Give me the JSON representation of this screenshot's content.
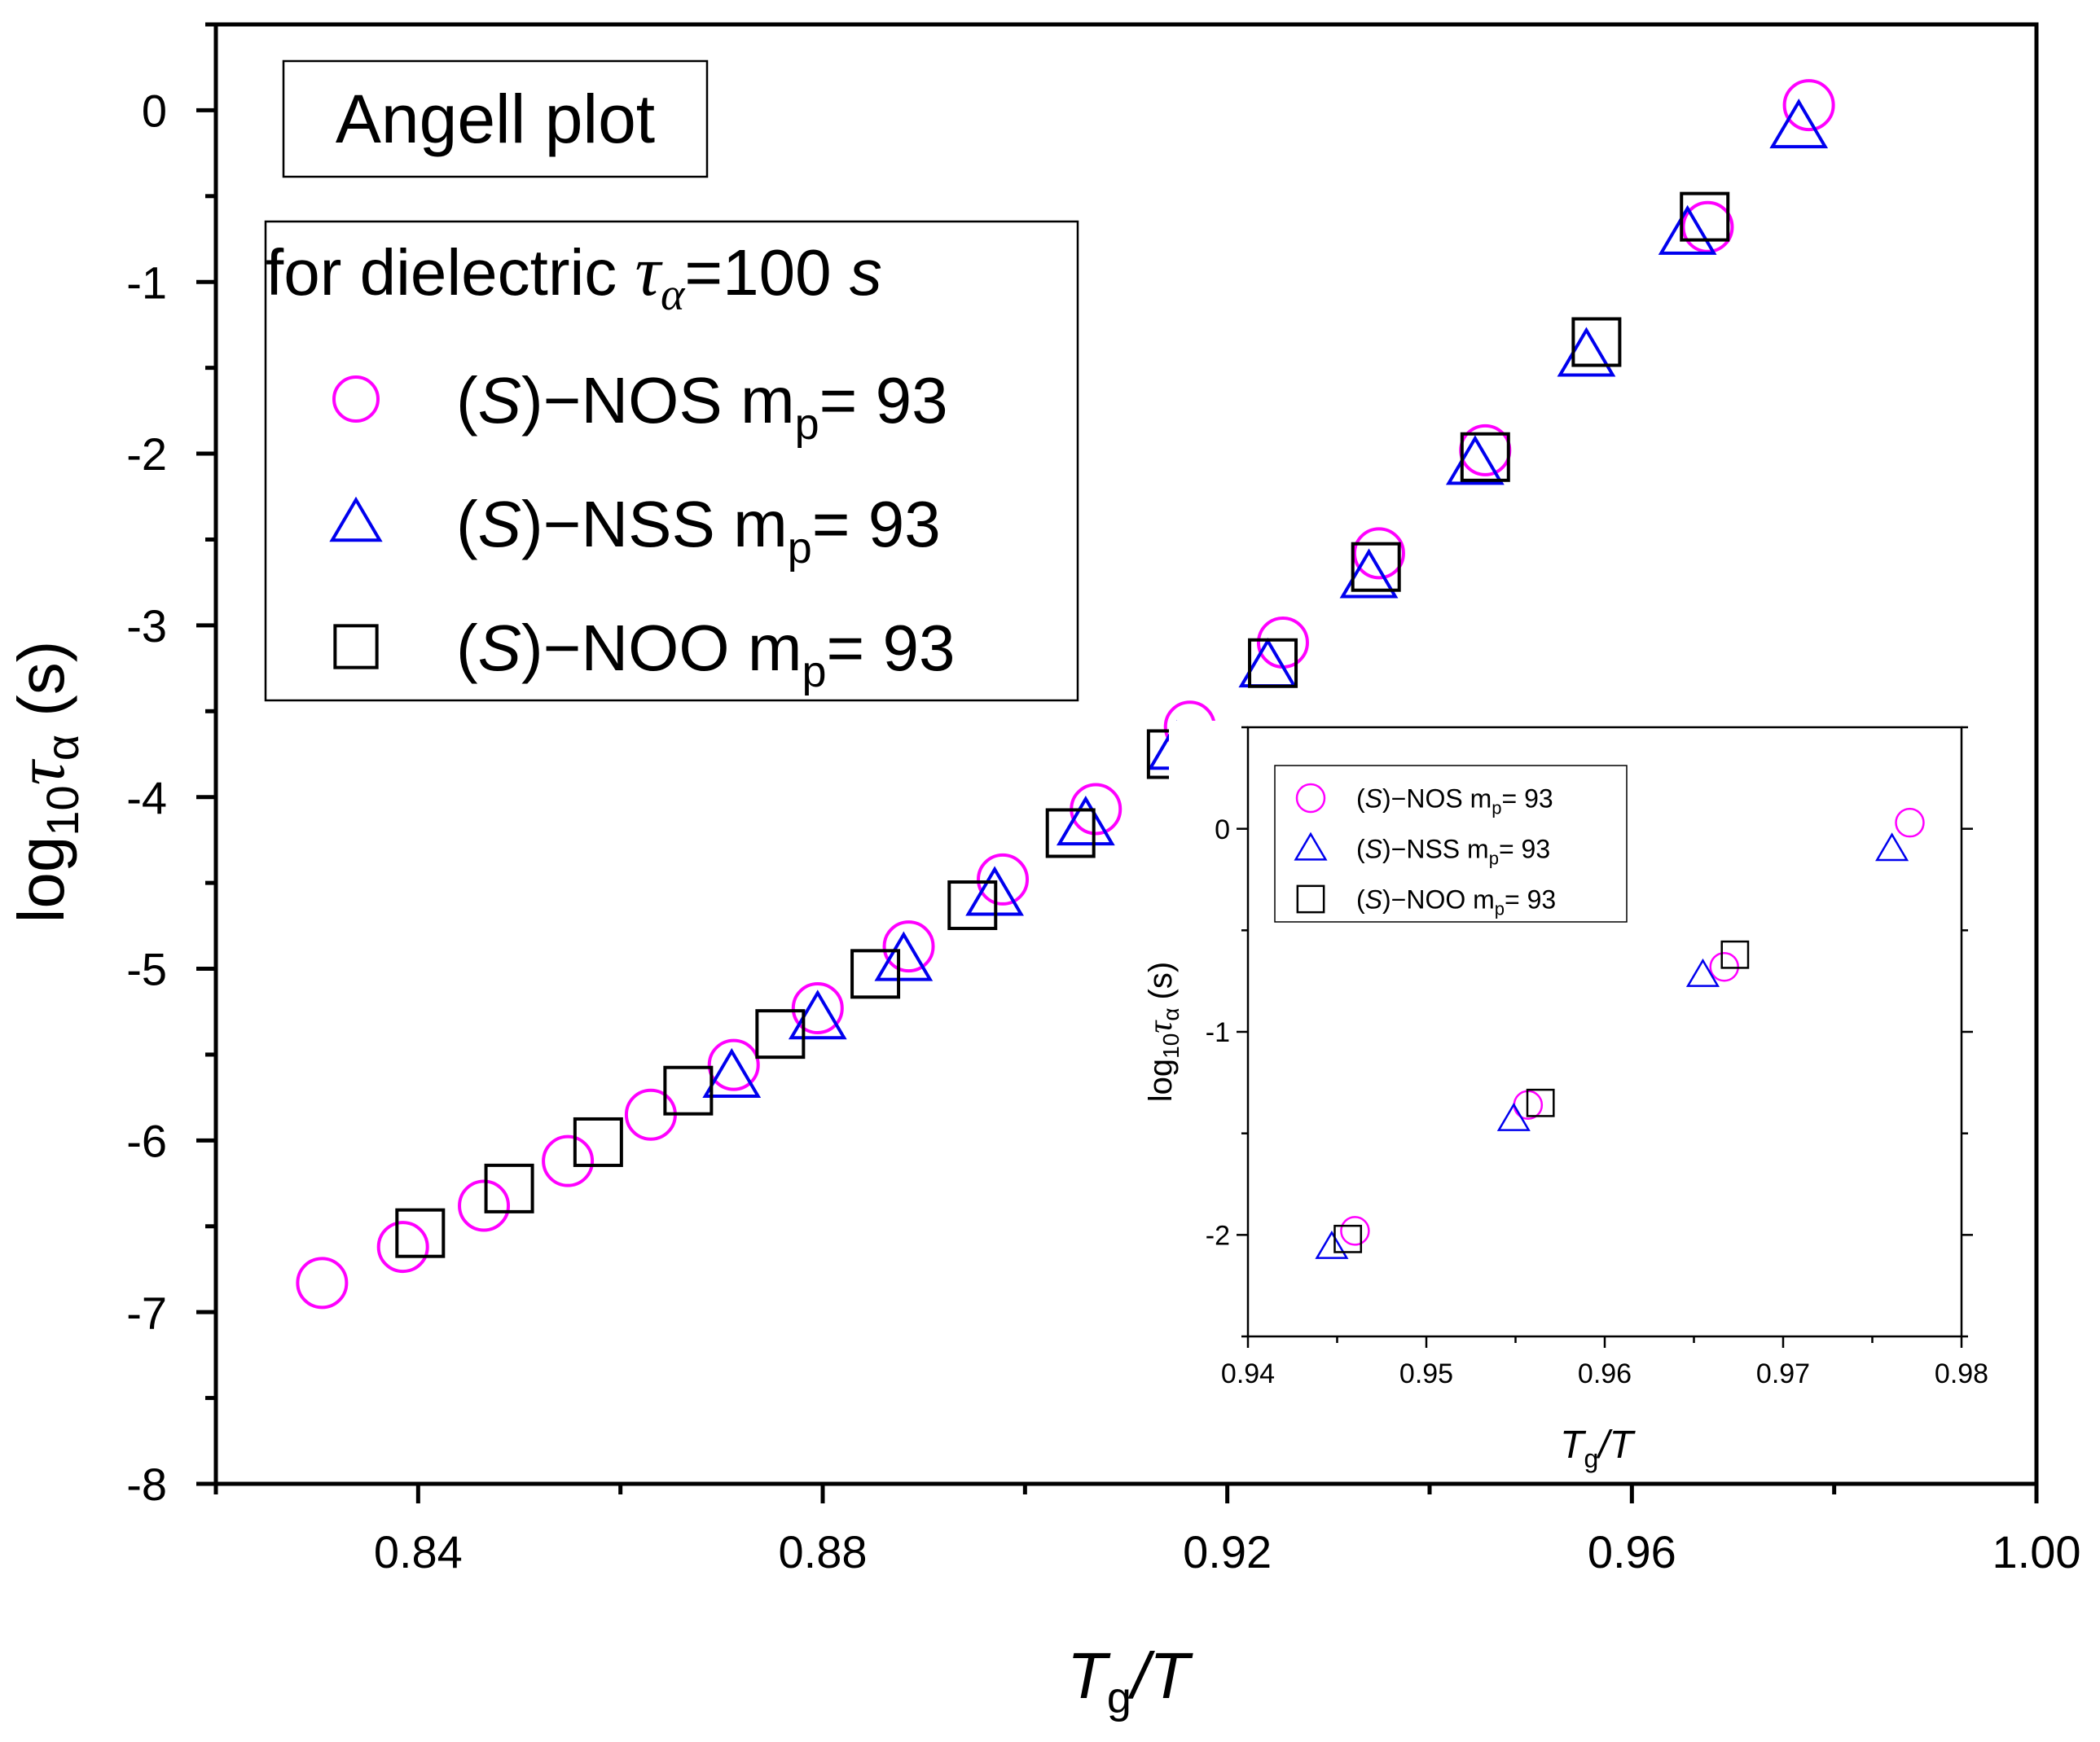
{
  "chart_data": [
    {
      "id": "main",
      "type": "scatter",
      "xlim": [
        0.82,
        1.0
      ],
      "ylim": [
        -8,
        0.5
      ],
      "x_ticks": [
        0.84,
        0.88,
        0.92,
        0.96,
        1.0
      ],
      "x_tick_labels": [
        "0.84",
        "0.88",
        "0.92",
        "0.96",
        "1.00"
      ],
      "y_ticks": [
        0,
        -1,
        -2,
        -3,
        -4,
        -5,
        -6,
        -7,
        -8
      ],
      "y_tick_labels": [
        "0",
        "-1",
        "-2",
        "-3",
        "-4",
        "-5",
        "-6",
        "-7",
        "-8"
      ],
      "xlabel": {
        "main": "T",
        "sub": "g",
        "rest": "/T"
      },
      "ylabel": {
        "prefix": "log",
        "sub": "10",
        "var": "τ",
        "varsub": "α",
        "suffix": "(s)"
      },
      "title_box": "Angell plot",
      "legend_header": {
        "text": "for dielectric ",
        "tau": "τ",
        "tausub": "α",
        "eq": "=100 ",
        "unit": "s"
      },
      "legend": [
        {
          "marker": "circle",
          "pre": "(",
          "s": "S",
          "name": ")−NOS",
          "m": "m",
          "msub": "p",
          "eq": "= 93"
        },
        {
          "marker": "triangle",
          "pre": "(",
          "s": "S",
          "name": ")−NSS",
          "m": "m",
          "msub": "p",
          "eq": "= 93"
        },
        {
          "marker": "square",
          "pre": "(",
          "s": "S",
          "name": ")−NOO",
          "m": "m",
          "msub": "p",
          "eq": "= 93"
        }
      ],
      "series": [
        {
          "name": "(S)-NOS",
          "marker": "circle",
          "color": "#ff00ff",
          "x": [
            0.8305,
            0.8385,
            0.8465,
            0.8548,
            0.863,
            0.8712,
            0.8795,
            0.8885,
            0.8978,
            0.907,
            0.9163,
            0.9255,
            0.935,
            0.9455,
            0.9675,
            0.9775
          ],
          "y": [
            -6.83,
            -6.62,
            -6.38,
            -6.12,
            -5.85,
            -5.56,
            -5.23,
            -4.87,
            -4.48,
            -4.07,
            -3.59,
            -3.1,
            -2.58,
            -1.98,
            -0.68,
            0.03
          ]
        },
        {
          "name": "(S)-NSS",
          "marker": "triangle",
          "color": "#0000ee",
          "x": [
            0.871,
            0.8795,
            0.888,
            0.897,
            0.906,
            0.915,
            0.924,
            0.934,
            0.9445,
            0.9555,
            0.9655,
            0.9765
          ],
          "y": [
            -5.63,
            -5.29,
            -4.95,
            -4.57,
            -4.16,
            -3.72,
            -3.24,
            -2.72,
            -2.06,
            -1.43,
            -0.72,
            -0.1
          ]
        },
        {
          "name": "(S)-NOO",
          "marker": "square",
          "color": "#000000",
          "x": [
            0.8402,
            0.849,
            0.8578,
            0.8667,
            0.8758,
            0.8852,
            0.8948,
            0.9045,
            0.9145,
            0.9245,
            0.9347,
            0.9455,
            0.9565,
            0.9672
          ],
          "y": [
            -6.54,
            -6.28,
            -6.01,
            -5.71,
            -5.38,
            -5.03,
            -4.63,
            -4.21,
            -3.75,
            -3.22,
            -2.66,
            -2.02,
            -1.35,
            -0.62
          ]
        }
      ]
    },
    {
      "id": "inset",
      "type": "scatter",
      "xlim": [
        0.94,
        0.98
      ],
      "ylim": [
        -2.5,
        0.5
      ],
      "x_ticks": [
        0.94,
        0.95,
        0.96,
        0.97,
        0.98
      ],
      "x_tick_labels": [
        "0.94",
        "0.95",
        "0.96",
        "0.97",
        "0.98"
      ],
      "y_ticks": [
        0,
        -1,
        -2
      ],
      "y_tick_labels": [
        "0",
        "-1",
        "-2"
      ],
      "xlabel": {
        "main": "T",
        "sub": "g",
        "rest": "/T"
      },
      "ylabel": {
        "prefix": "log",
        "sub": "10",
        "var": "τ",
        "varsub": "α",
        "suffix": "(s)"
      },
      "legend": [
        {
          "marker": "circle",
          "pre": "(",
          "s": "S",
          "name": ")−NOS",
          "gap": "   ",
          "m": "m",
          "msub": "p",
          "eq": "= 93"
        },
        {
          "marker": "triangle",
          "pre": "(",
          "s": "S",
          "name": ")−NSS",
          "gap": "  ",
          "m": "m",
          "msub": "p",
          "eq": "= 93"
        },
        {
          "marker": "square",
          "pre": "(",
          "s": "S",
          "name": ")−NOO",
          "gap": "   ",
          "m": "m",
          "msub": "p",
          "eq": "= 93"
        }
      ],
      "series": [
        {
          "name": "(S)-NOS",
          "marker": "circle",
          "color": "#ff00ff",
          "x": [
            0.946,
            0.9557,
            0.9667,
            0.9771
          ],
          "y": [
            -1.98,
            -1.36,
            -0.68,
            0.03
          ]
        },
        {
          "name": "(S)-NSS",
          "marker": "triangle",
          "color": "#0000ee",
          "x": [
            0.9447,
            0.9549,
            0.9655,
            0.9761
          ],
          "y": [
            -2.06,
            -1.43,
            -0.72,
            -0.1
          ]
        },
        {
          "name": "(S)-NOO",
          "marker": "square",
          "color": "#000000",
          "x": [
            0.9456,
            0.9564,
            0.9673
          ],
          "y": [
            -2.02,
            -1.35,
            -0.62
          ]
        }
      ]
    }
  ]
}
